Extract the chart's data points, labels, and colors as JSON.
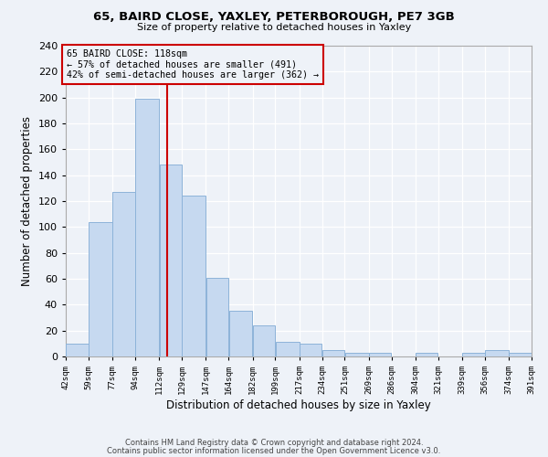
{
  "title1": "65, BAIRD CLOSE, YAXLEY, PETERBOROUGH, PE7 3GB",
  "title2": "Size of property relative to detached houses in Yaxley",
  "xlabel": "Distribution of detached houses by size in Yaxley",
  "ylabel": "Number of detached properties",
  "bin_labels": [
    "42sqm",
    "59sqm",
    "77sqm",
    "94sqm",
    "112sqm",
    "129sqm",
    "147sqm",
    "164sqm",
    "182sqm",
    "199sqm",
    "217sqm",
    "234sqm",
    "251sqm",
    "269sqm",
    "286sqm",
    "304sqm",
    "321sqm",
    "339sqm",
    "356sqm",
    "374sqm",
    "391sqm"
  ],
  "bar_heights": [
    10,
    104,
    127,
    199,
    148,
    124,
    61,
    35,
    24,
    11,
    10,
    5,
    3,
    3,
    0,
    3,
    0,
    3,
    5,
    3
  ],
  "bin_edges": [
    42,
    59,
    77,
    94,
    112,
    129,
    147,
    164,
    182,
    199,
    217,
    234,
    251,
    269,
    286,
    304,
    321,
    339,
    356,
    374,
    391
  ],
  "bar_color": "#c6d9f0",
  "bar_edge_color": "#8db3d9",
  "property_size": 118,
  "vline_color": "#cc0000",
  "annotation_box_color": "#cc0000",
  "annotation_line1": "65 BAIRD CLOSE: 118sqm",
  "annotation_line2": "← 57% of detached houses are smaller (491)",
  "annotation_line3": "42% of semi-detached houses are larger (362) →",
  "ylim": [
    0,
    240
  ],
  "yticks": [
    0,
    20,
    40,
    60,
    80,
    100,
    120,
    140,
    160,
    180,
    200,
    220,
    240
  ],
  "footer1": "Contains HM Land Registry data © Crown copyright and database right 2024.",
  "footer2": "Contains public sector information licensed under the Open Government Licence v3.0.",
  "background_color": "#eef2f8",
  "grid_color": "#ffffff"
}
